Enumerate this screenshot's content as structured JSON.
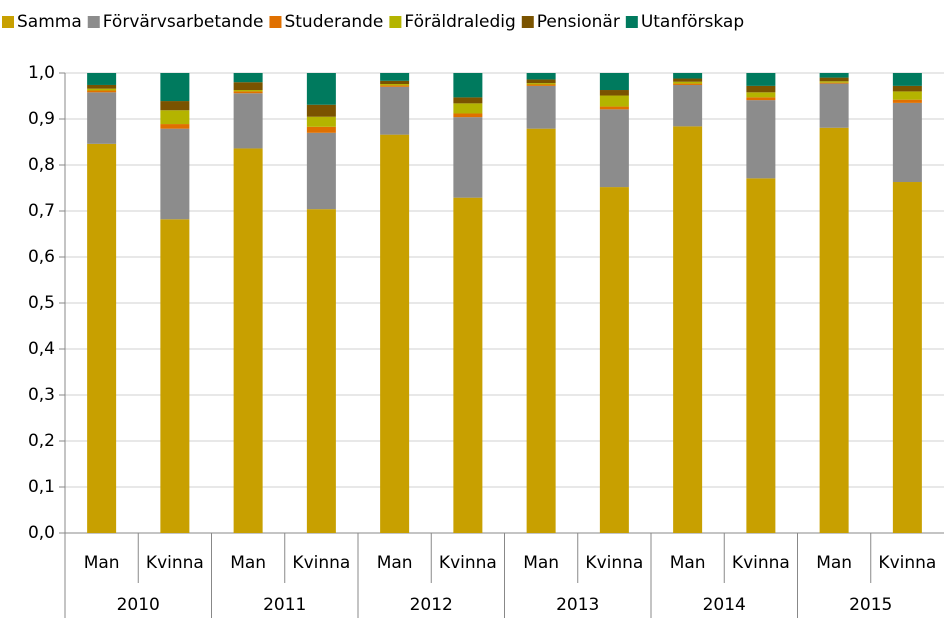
{
  "chart_data": {
    "type": "stacked_bar",
    "categories": [
      "Man",
      "Kvinna",
      "Man",
      "Kvinna",
      "Man",
      "Kvinna",
      "Man",
      "Kvinna",
      "Man",
      "Kvinna",
      "Man",
      "Kvinna"
    ],
    "groups": [
      "2010",
      "2011",
      "2012",
      "2013",
      "2014",
      "2015"
    ],
    "series": [
      {
        "name": "Samma",
        "color": "#c8a000",
        "values": [
          0.846,
          0.682,
          0.836,
          0.704,
          0.866,
          0.729,
          0.879,
          0.752,
          0.884,
          0.771,
          0.881,
          0.763
        ]
      },
      {
        "name": "Förvärvsarbetande",
        "color": "#8c8c8c",
        "values": [
          0.112,
          0.197,
          0.12,
          0.166,
          0.104,
          0.175,
          0.093,
          0.169,
          0.09,
          0.17,
          0.096,
          0.172
        ]
      },
      {
        "name": "Studerande",
        "color": "#e07000",
        "values": [
          0.004,
          0.01,
          0.004,
          0.013,
          0.003,
          0.008,
          0.003,
          0.006,
          0.003,
          0.006,
          0.002,
          0.007
        ]
      },
      {
        "name": "Föräldraledig",
        "color": "#b4b400",
        "values": [
          0.004,
          0.03,
          0.003,
          0.022,
          0.003,
          0.022,
          0.003,
          0.024,
          0.004,
          0.011,
          0.003,
          0.018
        ]
      },
      {
        "name": "Pensionär",
        "color": "#7a5300",
        "values": [
          0.008,
          0.02,
          0.017,
          0.026,
          0.007,
          0.013,
          0.008,
          0.012,
          0.007,
          0.014,
          0.008,
          0.012
        ]
      },
      {
        "name": "Utanförskap",
        "color": "#007a5e",
        "values": [
          0.026,
          0.061,
          0.02,
          0.069,
          0.017,
          0.053,
          0.014,
          0.037,
          0.012,
          0.028,
          0.01,
          0.028
        ]
      }
    ],
    "ylim": [
      0,
      1
    ],
    "yticks": [
      {
        "value": 0,
        "label": "0,0"
      },
      {
        "value": 0.1,
        "label": "0,1"
      },
      {
        "value": 0.2,
        "label": "0,2"
      },
      {
        "value": 0.3,
        "label": "0,3"
      },
      {
        "value": 0.4,
        "label": "0,4"
      },
      {
        "value": 0.5,
        "label": "0,5"
      },
      {
        "value": 0.6,
        "label": "0,6"
      },
      {
        "value": 0.7,
        "label": "0,7"
      },
      {
        "value": 0.8,
        "label": "0,8"
      },
      {
        "value": 0.9,
        "label": "0,9"
      },
      {
        "value": 1,
        "label": "1,0"
      }
    ],
    "grid": true,
    "legend": "top"
  }
}
